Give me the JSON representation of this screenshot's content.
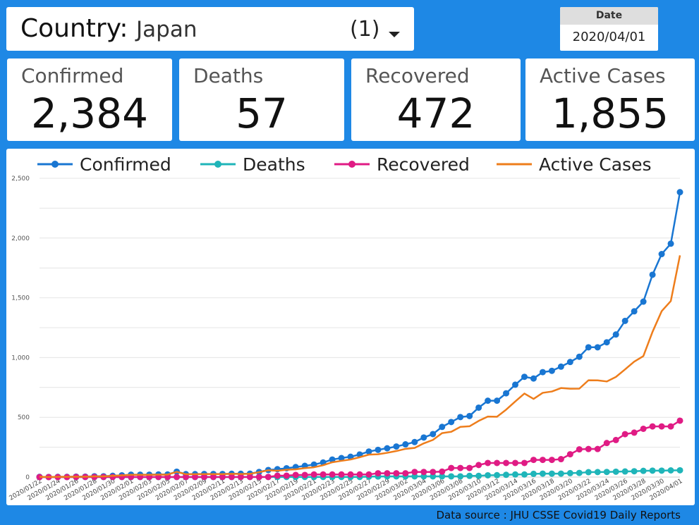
{
  "country_filter": {
    "label": "Country",
    "separator": ":",
    "value": "Japan",
    "count": "(1)"
  },
  "date_filter": {
    "label": "Date",
    "value": "2020/04/01"
  },
  "kpis": [
    {
      "label": "Confirmed",
      "value": "2,384"
    },
    {
      "label": "Deaths",
      "value": "57"
    },
    {
      "label": "Recovered",
      "value": "472"
    },
    {
      "label": "Active Cases",
      "value": "1,855"
    }
  ],
  "colors": {
    "confirmed": "#1976d2",
    "deaths": "#1fb5b9",
    "recovered": "#e01b84",
    "active": "#ee7d1b",
    "background": "#1e88e5"
  },
  "footer": {
    "data_source": "Data source : JHU CSSE Covid19 Daily Reports"
  },
  "chart_data": {
    "type": "line",
    "title": "",
    "xlabel": "",
    "ylabel": "",
    "ylim": [
      0,
      2500
    ],
    "y_ticks": [
      0,
      500,
      1000,
      1500,
      2000,
      2500
    ],
    "y_tick_labels": [
      "0",
      "500",
      "1,000",
      "1,500",
      "2,000",
      "2,500"
    ],
    "legend_position": "top",
    "x": [
      "2020/01/22",
      "2020/01/23",
      "2020/01/24",
      "2020/01/25",
      "2020/01/26",
      "2020/01/27",
      "2020/01/28",
      "2020/01/29",
      "2020/01/30",
      "2020/01/31",
      "2020/02/01",
      "2020/02/02",
      "2020/02/03",
      "2020/02/04",
      "2020/02/05",
      "2020/02/06",
      "2020/02/07",
      "2020/02/08",
      "2020/02/09",
      "2020/02/10",
      "2020/02/11",
      "2020/02/12",
      "2020/02/13",
      "2020/02/14",
      "2020/02/15",
      "2020/02/16",
      "2020/02/17",
      "2020/02/18",
      "2020/02/19",
      "2020/02/20",
      "2020/02/21",
      "2020/02/22",
      "2020/02/23",
      "2020/02/24",
      "2020/02/25",
      "2020/02/26",
      "2020/02/27",
      "2020/02/28",
      "2020/02/29",
      "2020/03/01",
      "2020/03/02",
      "2020/03/03",
      "2020/03/04",
      "2020/03/05",
      "2020/03/06",
      "2020/03/07",
      "2020/03/08",
      "2020/03/09",
      "2020/03/10",
      "2020/03/11",
      "2020/03/12",
      "2020/03/13",
      "2020/03/14",
      "2020/03/15",
      "2020/03/16",
      "2020/03/17",
      "2020/03/18",
      "2020/03/19",
      "2020/03/20",
      "2020/03/21",
      "2020/03/22",
      "2020/03/23",
      "2020/03/24",
      "2020/03/25",
      "2020/03/26",
      "2020/03/27",
      "2020/03/28",
      "2020/03/29",
      "2020/03/30",
      "2020/03/31",
      "2020/04/01"
    ],
    "x_tick_labels": [
      "2020/01/22",
      "2020/01/24",
      "2020/01/26",
      "2020/01/28",
      "2020/01/30",
      "2020/02/01",
      "2020/02/03",
      "2020/02/05",
      "2020/02/07",
      "2020/02/09",
      "2020/02/11",
      "2020/02/13",
      "2020/02/15",
      "2020/02/17",
      "2020/02/19",
      "2020/02/21",
      "2020/02/23",
      "2020/02/25",
      "2020/02/27",
      "2020/02/29",
      "2020/03/02",
      "2020/03/04",
      "2020/03/06",
      "2020/03/08",
      "2020/03/10",
      "2020/03/12",
      "2020/03/14",
      "2020/03/16",
      "2020/03/18",
      "2020/03/20",
      "2020/03/22",
      "2020/03/24",
      "2020/03/26",
      "2020/03/28",
      "2020/03/30",
      "2020/04/01"
    ],
    "series": [
      {
        "name": "Confirmed",
        "color": "#1976d2",
        "markers": true,
        "values": [
          2,
          1,
          2,
          2,
          4,
          4,
          7,
          7,
          11,
          15,
          20,
          20,
          20,
          22,
          22,
          45,
          25,
          25,
          26,
          26,
          26,
          28,
          28,
          29,
          43,
          59,
          66,
          74,
          84,
          94,
          105,
          122,
          147,
          159,
          170,
          189,
          214,
          228,
          241,
          256,
          274,
          293,
          331,
          360,
          420,
          461,
          502,
          511,
          581,
          639,
          639,
          701,
          773,
          839,
          825,
          878,
          889,
          924,
          963,
          1007,
          1086,
          1086,
          1128,
          1193,
          1307,
          1387,
          1468,
          1693,
          1866,
          1953,
          2384
        ]
      },
      {
        "name": "Deaths",
        "color": "#1fb5b9",
        "markers": true,
        "values": [
          0,
          0,
          0,
          0,
          0,
          0,
          0,
          0,
          0,
          0,
          0,
          0,
          0,
          0,
          0,
          0,
          0,
          0,
          0,
          0,
          0,
          0,
          1,
          1,
          1,
          1,
          1,
          1,
          1,
          1,
          1,
          1,
          1,
          1,
          1,
          1,
          4,
          5,
          6,
          6,
          6,
          6,
          6,
          6,
          6,
          6,
          6,
          10,
          10,
          15,
          16,
          19,
          22,
          22,
          27,
          29,
          29,
          29,
          33,
          35,
          41,
          42,
          43,
          45,
          47,
          49,
          52,
          54,
          54,
          56,
          57
        ]
      },
      {
        "name": "Recovered",
        "color": "#e01b84",
        "markers": true,
        "values": [
          0,
          0,
          0,
          0,
          1,
          1,
          1,
          1,
          1,
          1,
          1,
          1,
          1,
          1,
          1,
          1,
          1,
          1,
          1,
          1,
          1,
          1,
          1,
          1,
          1,
          1,
          12,
          12,
          18,
          18,
          22,
          22,
          22,
          22,
          22,
          22,
          22,
          32,
          32,
          32,
          32,
          43,
          43,
          43,
          46,
          76,
          76,
          76,
          101,
          118,
          118,
          118,
          118,
          118,
          144,
          144,
          144,
          150,
          191,
          232,
          235,
          235,
          285,
          310,
          359,
          372,
          404,
          424,
          424,
          424,
          472
        ]
      },
      {
        "name": "Active Cases",
        "color": "#ee7d1b",
        "markers": false,
        "values": [
          2,
          1,
          2,
          2,
          3,
          3,
          6,
          6,
          10,
          14,
          19,
          19,
          19,
          21,
          21,
          44,
          24,
          24,
          25,
          25,
          25,
          27,
          26,
          27,
          41,
          57,
          53,
          61,
          65,
          75,
          82,
          99,
          124,
          136,
          147,
          166,
          188,
          191,
          203,
          218,
          236,
          244,
          282,
          311,
          368,
          379,
          420,
          425,
          470,
          506,
          505,
          564,
          633,
          699,
          654,
          705,
          716,
          745,
          739,
          740,
          810,
          809,
          800,
          838,
          901,
          966,
          1012,
          1215,
          1388,
          1473,
          1855
        ]
      }
    ]
  }
}
